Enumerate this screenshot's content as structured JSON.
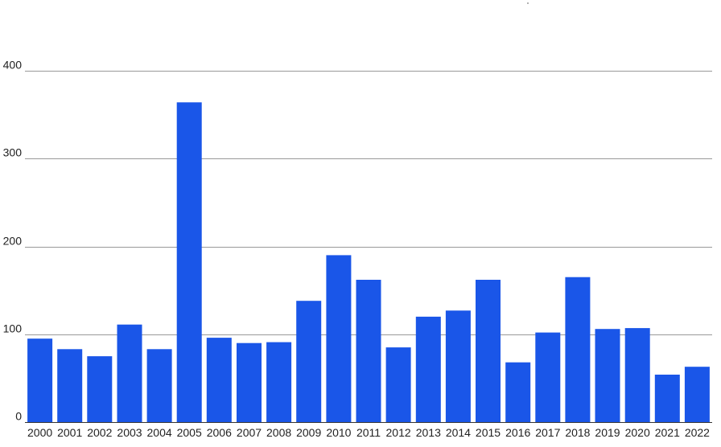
{
  "chart_data": {
    "type": "bar",
    "title": "",
    "xlabel": "",
    "ylabel": "",
    "ylim": [
      0,
      400
    ],
    "yticks": [
      0,
      100,
      200,
      300,
      400
    ],
    "grid": true,
    "bar_color": "#1a56e8",
    "grid_color": "#999999",
    "categories": [
      "2000",
      "2001",
      "2002",
      "2003",
      "2004",
      "2005",
      "2006",
      "2007",
      "2008",
      "2009",
      "2010",
      "2011",
      "2012",
      "2013",
      "2014",
      "2015",
      "2016",
      "2017",
      "2018",
      "2019",
      "2020",
      "2021",
      "2022"
    ],
    "values": [
      95,
      83,
      75,
      111,
      83,
      364,
      96,
      90,
      91,
      138,
      190,
      162,
      85,
      120,
      127,
      162,
      68,
      102,
      165,
      106,
      107,
      54,
      63
    ]
  }
}
